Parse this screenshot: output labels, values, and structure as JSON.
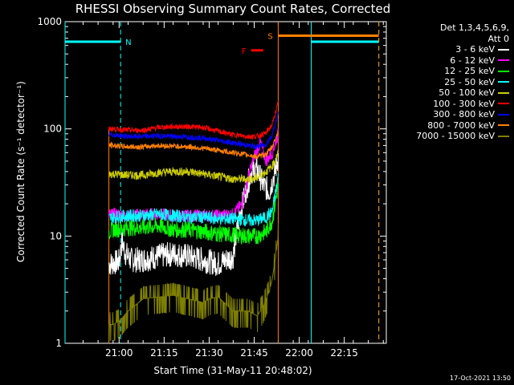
{
  "chart_data": {
    "type": "line",
    "title": "RHESSI Observing Summary Count Rates, Corrected",
    "xlabel": "Start Time (31-May-11 20:48:02)",
    "ylabel": "Corrected Count Rate (s⁻¹ detector⁻¹)",
    "yscale": "log",
    "ylim": [
      1,
      1000
    ],
    "xlim_minutes": [
      -6,
      101
    ],
    "x_ticks": [
      {
        "label": "21:00",
        "minute": 12
      },
      {
        "label": "21:15",
        "minute": 27
      },
      {
        "label": "21:30",
        "minute": 42
      },
      {
        "label": "21:45",
        "minute": 57
      },
      {
        "label": "22:00",
        "minute": 72
      },
      {
        "label": "22:15",
        "minute": 87
      }
    ],
    "y_ticks": [
      {
        "label": "1",
        "value": 1
      },
      {
        "label": "10",
        "value": 10
      },
      {
        "label": "100",
        "value": 100
      },
      {
        "label": "1000",
        "value": 1000
      }
    ],
    "legend_header": [
      "Det 1,3,4,5,6,9,",
      "Att 0"
    ],
    "legend_position": "top-right",
    "series": [
      {
        "name": "3 - 6 keV",
        "color": "#ffffff",
        "x": [
          8.6,
          9,
          12,
          13,
          14,
          16,
          20,
          25,
          30,
          35,
          40,
          45,
          50,
          52,
          54,
          56,
          58,
          60,
          62,
          64,
          65
        ],
        "y": [
          5.5,
          5.5,
          5.8,
          9,
          7,
          6,
          6,
          6.5,
          6.8,
          6.5,
          6,
          5.5,
          6.5,
          15,
          25,
          40,
          42,
          30,
          26,
          40,
          55
        ]
      },
      {
        "name": "6 - 12 keV",
        "color": "#ff00ff",
        "x": [
          8.6,
          10,
          15,
          20,
          25,
          30,
          35,
          40,
          45,
          50,
          53,
          55,
          57,
          59,
          61,
          63,
          65
        ],
        "y": [
          16,
          16,
          15.5,
          16,
          16,
          15.5,
          15.5,
          15.5,
          15.5,
          16,
          20,
          35,
          55,
          75,
          50,
          60,
          90
        ]
      },
      {
        "name": "12 - 25 keV",
        "color": "#00ff00",
        "x": [
          8.6,
          10,
          15,
          20,
          25,
          30,
          35,
          40,
          45,
          50,
          55,
          58,
          61,
          63,
          65
        ],
        "y": [
          11,
          11.5,
          12,
          12,
          12.5,
          11.5,
          11.5,
          11,
          10.5,
          10.2,
          10,
          10,
          11,
          14,
          30
        ]
      },
      {
        "name": "25 - 50 keV",
        "color": "#00ffff",
        "x": [
          8.6,
          10,
          15,
          20,
          25,
          30,
          35,
          40,
          45,
          50,
          55,
          58,
          61,
          63,
          65
        ],
        "y": [
          14.5,
          15,
          15.5,
          15.5,
          16,
          15.5,
          15,
          15,
          14.5,
          14.5,
          14,
          14,
          15,
          17,
          35
        ]
      },
      {
        "name": "50 - 100 keV",
        "color": "#cccc00",
        "x": [
          8.6,
          10,
          15,
          20,
          25,
          30,
          35,
          40,
          45,
          50,
          55,
          58,
          61,
          63,
          65
        ],
        "y": [
          38,
          38,
          37,
          37,
          39,
          40,
          40,
          38,
          36,
          34,
          34,
          35,
          40,
          45,
          60
        ]
      },
      {
        "name": "100 - 300 keV",
        "color": "#ff0000",
        "x": [
          8.6,
          10,
          15,
          20,
          25,
          30,
          35,
          40,
          45,
          50,
          55,
          58,
          61,
          63,
          65
        ],
        "y": [
          100,
          100,
          97,
          97,
          103,
          105,
          105,
          103,
          95,
          88,
          85,
          85,
          92,
          110,
          175
        ]
      },
      {
        "name": "300 - 800 keV",
        "color": "#0000ff",
        "x": [
          8.6,
          10,
          15,
          20,
          25,
          30,
          35,
          40,
          45,
          50,
          55,
          58,
          61,
          63,
          65
        ],
        "y": [
          88,
          88,
          85,
          85,
          86,
          85,
          84,
          82,
          78,
          74,
          70,
          68,
          72,
          88,
          140
        ]
      },
      {
        "name": "800 - 7000 keV",
        "color": "#ff8000",
        "x": [
          8.6,
          10,
          15,
          20,
          25,
          30,
          35,
          40,
          45,
          50,
          55,
          58,
          61,
          63,
          65
        ],
        "y": [
          70,
          70,
          68,
          68,
          70,
          69,
          68,
          66,
          63,
          60,
          57,
          55,
          58,
          68,
          95
        ]
      },
      {
        "name": "7000 - 15000 keV",
        "color": "#808000",
        "x": [
          8.6,
          10,
          12,
          15,
          20,
          25,
          30,
          35,
          40,
          42,
          45,
          50,
          55,
          58,
          60,
          61,
          62,
          63,
          64,
          65
        ],
        "y": [
          1.5,
          1.5,
          1.6,
          2.0,
          2.6,
          2.7,
          2.8,
          2.6,
          2.4,
          2.6,
          2.7,
          2.0,
          2.0,
          1.8,
          2.2,
          2.6,
          3.0,
          4.0,
          6.0,
          10
        ]
      }
    ],
    "markers": [
      {
        "label": "N",
        "color": "#00ffff"
      },
      {
        "label": "S",
        "color": "#ff8000"
      },
      {
        "label": "F",
        "color": "#ff0000"
      }
    ]
  },
  "timestamp": "17-Oct-2021 13:50"
}
